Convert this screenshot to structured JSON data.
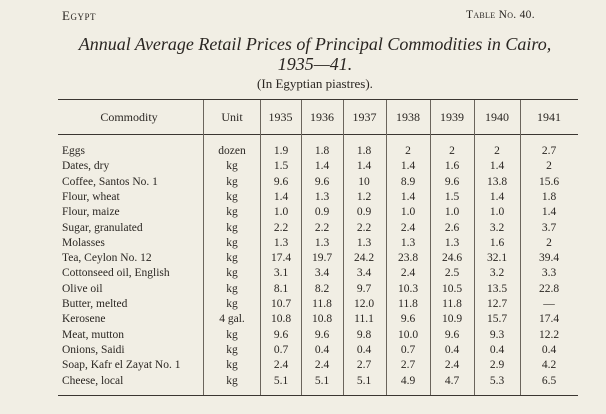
{
  "header": {
    "left": "Egypt",
    "right": "Table No. 40."
  },
  "title_line1": "Annual Average Retail Prices of Principal Commodities in Cairo,",
  "title_line2": "1935—41.",
  "subtitle": "(In Egyptian piastres).",
  "columns": [
    "Commodity",
    "Unit",
    "1935",
    "1936",
    "1937",
    "1938",
    "1939",
    "1940",
    "1941"
  ],
  "rows": [
    {
      "commodity": "Eggs",
      "unit": "dozen",
      "values": [
        "1.9",
        "1.8",
        "1.8",
        "2",
        "2",
        "2",
        "2.7"
      ]
    },
    {
      "commodity": "Dates, dry",
      "unit": "kg",
      "values": [
        "1.5",
        "1.4",
        "1.4",
        "1.4",
        "1.6",
        "1.4",
        "2"
      ]
    },
    {
      "commodity": "Coffee, Santos No. 1",
      "unit": "kg",
      "values": [
        "9.6",
        "9.6",
        "10",
        "8.9",
        "9.6",
        "13.8",
        "15.6"
      ]
    },
    {
      "commodity": "Flour, wheat",
      "unit": "kg",
      "values": [
        "1.4",
        "1.3",
        "1.2",
        "1.4",
        "1.5",
        "1.4",
        "1.8"
      ]
    },
    {
      "commodity": "Flour, maize",
      "unit": "kg",
      "values": [
        "1.0",
        "0.9",
        "0.9",
        "1.0",
        "1.0",
        "1.0",
        "1.4"
      ]
    },
    {
      "commodity": "Sugar, granulated",
      "unit": "kg",
      "values": [
        "2.2",
        "2.2",
        "2.2",
        "2.4",
        "2.6",
        "3.2",
        "3.7"
      ]
    },
    {
      "commodity": "Molasses",
      "unit": "kg",
      "values": [
        "1.3",
        "1.3",
        "1.3",
        "1.3",
        "1.3",
        "1.6",
        "2"
      ]
    },
    {
      "commodity": "Tea, Ceylon No. 12",
      "unit": "kg",
      "values": [
        "17.4",
        "19.7",
        "24.2",
        "23.8",
        "24.6",
        "32.1",
        "39.4"
      ]
    },
    {
      "commodity": "Cottonseed oil, English",
      "unit": "kg",
      "values": [
        "3.1",
        "3.4",
        "3.4",
        "2.4",
        "2.5",
        "3.2",
        "3.3"
      ]
    },
    {
      "commodity": "Olive oil",
      "unit": "kg",
      "values": [
        "8.1",
        "8.2",
        "9.7",
        "10.3",
        "10.5",
        "13.5",
        "22.8"
      ]
    },
    {
      "commodity": "Butter, melted",
      "unit": "kg",
      "values": [
        "10.7",
        "11.8",
        "12.0",
        "11.8",
        "11.8",
        "12.7",
        "—"
      ]
    },
    {
      "commodity": "Kerosene",
      "unit": "4 gal.",
      "values": [
        "10.8",
        "10.8",
        "11.1",
        "9.6",
        "10.9",
        "15.7",
        "17.4"
      ]
    },
    {
      "commodity": "Meat, mutton",
      "unit": "kg",
      "values": [
        "9.6",
        "9.6",
        "9.8",
        "10.0",
        "9.6",
        "9.3",
        "12.2"
      ]
    },
    {
      "commodity": "Onions, Saidi",
      "unit": "kg",
      "values": [
        "0.7",
        "0.4",
        "0.4",
        "0.7",
        "0.4",
        "0.4",
        "0.4"
      ]
    },
    {
      "commodity": "Soap, Kafr el Zayat No. 1",
      "unit": "kg",
      "values": [
        "2.4",
        "2.4",
        "2.7",
        "2.7",
        "2.4",
        "2.9",
        "4.2"
      ]
    },
    {
      "commodity": "Cheese, local",
      "unit": "kg",
      "values": [
        "5.1",
        "5.1",
        "5.1",
        "4.9",
        "4.7",
        "5.3",
        "6.5"
      ]
    }
  ]
}
